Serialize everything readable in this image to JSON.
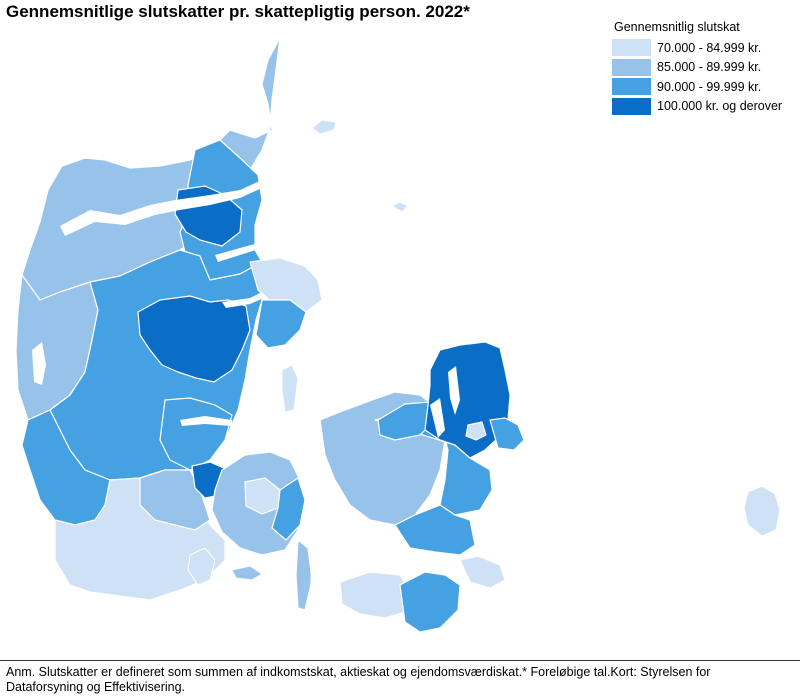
{
  "title": "Gennemsnitlige slutskatter pr. skattepligtig person. 2022*",
  "legend": {
    "title": "Gennemsnitlig slutskat",
    "items": [
      {
        "label": "70.000 - 84.999 kr.",
        "color": "#cfe1f5"
      },
      {
        "label": "85.000 - 89.999 kr.",
        "color": "#97c3ea"
      },
      {
        "label": "90.000 - 99.999 kr.",
        "color": "#45a1e2"
      },
      {
        "label": "100.000 kr. og derover",
        "color": "#0a6ec7"
      }
    ]
  },
  "footnote": "Anm. Slutskatter er defineret som summen af indkomstskat, aktieskat og ejendomsværdiskat.* Foreløbige tal.Kort: Styrelsen for Dataforsyning og Effektivisering."
}
